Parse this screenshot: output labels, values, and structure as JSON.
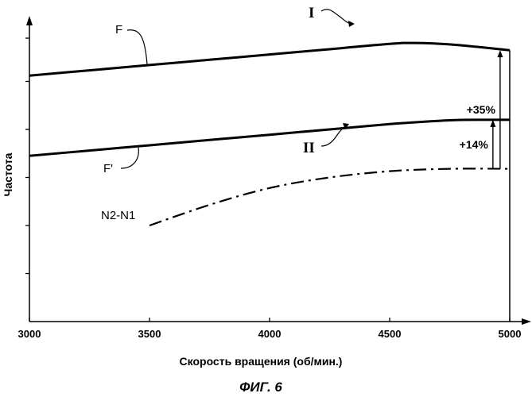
{
  "chart_data": {
    "type": "line",
    "xlabel": "Скорость вращения (об/мин.)",
    "ylabel": "Частота",
    "caption": "ФИГ. 6",
    "x_ticks": [
      3000,
      3500,
      4000,
      4500,
      5000
    ],
    "xlim": [
      3000,
      5000
    ],
    "ylim": [
      0,
      6
    ],
    "grid": false,
    "series": [
      {
        "name": "F",
        "group_label": "I",
        "style": "solid",
        "x": [
          3000,
          3250,
          3500,
          3750,
          4000,
          4250,
          4500,
          4600,
          4750,
          5000
        ],
        "y": [
          5.12,
          5.23,
          5.34,
          5.45,
          5.56,
          5.67,
          5.78,
          5.8,
          5.77,
          5.65
        ]
      },
      {
        "name": "F'",
        "group_label": "II",
        "style": "solid",
        "x": [
          3000,
          3250,
          3500,
          3750,
          4000,
          4250,
          4500,
          4750,
          4900,
          5000
        ],
        "y": [
          3.45,
          3.56,
          3.67,
          3.78,
          3.89,
          4.0,
          4.11,
          4.19,
          4.2,
          4.2
        ]
      },
      {
        "name": "N2-N1",
        "style": "dash-dot",
        "x": [
          3500,
          3750,
          4000,
          4250,
          4500,
          4750,
          5000
        ],
        "y": [
          2.0,
          2.43,
          2.78,
          3.0,
          3.13,
          3.18,
          3.18
        ]
      }
    ],
    "annotations": [
      {
        "text": "+35%",
        "x": 4960,
        "from_y": 3.18,
        "to_y": 5.65
      },
      {
        "text": "+14%",
        "x": 4930,
        "from_y": 3.18,
        "to_y": 4.2
      }
    ]
  }
}
